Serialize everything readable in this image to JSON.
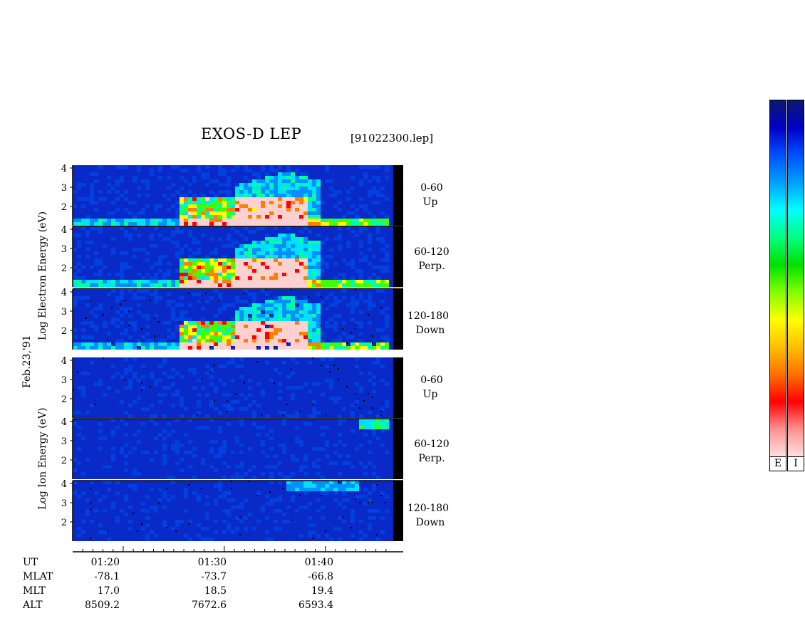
{
  "header": {
    "title": "EXOS-D LEP",
    "filename": "[91022300.lep]"
  },
  "side_labels": {
    "electron_axis": "Log  Electron  Energy (eV)",
    "ion_axis": "Log  Ion  Energy (eV)",
    "date": "Feb.23,'91"
  },
  "panels": [
    {
      "species": "electron",
      "pitch_range": "0-60",
      "direction": "Up"
    },
    {
      "species": "electron",
      "pitch_range": "60-120",
      "direction": "Perp."
    },
    {
      "species": "electron",
      "pitch_range": "120-180",
      "direction": "Down"
    },
    {
      "species": "ion",
      "pitch_range": "0-60",
      "direction": "Up"
    },
    {
      "species": "ion",
      "pitch_range": "60-120",
      "direction": "Perp."
    },
    {
      "species": "ion",
      "pitch_range": "120-180",
      "direction": "Down"
    }
  ],
  "y_ticks": [
    "4",
    "3",
    "2"
  ],
  "ephemeris": {
    "labels": [
      "UT",
      "MLAT",
      "MLT",
      "ALT"
    ],
    "columns": [
      {
        "UT": "01:20",
        "MLAT": "-78.1",
        "MLT": "17.0",
        "ALT": "8509.2"
      },
      {
        "UT": "01:30",
        "MLAT": "-73.7",
        "MLT": "18.5",
        "ALT": "7672.6"
      },
      {
        "UT": "01:40",
        "MLAT": "-66.8",
        "MLT": "19.4",
        "ALT": "6593.4"
      }
    ]
  },
  "colorbars": {
    "labels": [
      "E",
      "I"
    ],
    "colors_top_to_bottom": [
      "#0a1a6e",
      "#0000c8",
      "#0050ff",
      "#00a0ff",
      "#00ffff",
      "#00ff80",
      "#00e000",
      "#80ff00",
      "#ffff00",
      "#ffc000",
      "#ff7000",
      "#ff0000",
      "#ff9090",
      "#ffe0e0"
    ]
  },
  "chart_data": {
    "type": "heatmap",
    "title": "EXOS-D LEP",
    "x_axis": {
      "label": "UT",
      "ticks": [
        "01:20",
        "01:30",
        "01:40"
      ],
      "range": [
        "01:15",
        "01:47"
      ]
    },
    "y_axis": {
      "label": "Log Energy (eV)",
      "range": [
        1,
        4
      ],
      "ticks": [
        2,
        3,
        4
      ]
    },
    "grid": false,
    "series": [
      {
        "name": "Electron 0-60 Up",
        "description_levels": "enhanced flux 01:26-01:38, energetic band up to log E 3.8 around 01:34-01:39, red intensity below log E 2.5"
      },
      {
        "name": "Electron 60-120 Perp.",
        "description_levels": "similar structure, peak near log E 3.8 at ~01:38"
      },
      {
        "name": "Electron 120-180 Down",
        "description_levels": "similar structure with strong red bursts 01:26-01:34"
      },
      {
        "name": "Ion 0-60 Up",
        "description_levels": "low-level noise, faint green near log E 4 after 01:43"
      },
      {
        "name": "Ion 60-120 Perp.",
        "description_levels": "faint cyan arc, green-yellow at log E 4 near 01:44-01:46"
      },
      {
        "name": "Ion 120-180 Down",
        "description_levels": "faint cyan band near log E 3.8-4.0 from 01:36-01:43"
      }
    ]
  }
}
